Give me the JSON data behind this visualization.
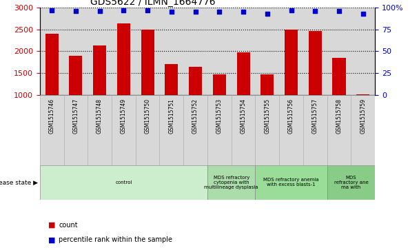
{
  "title": "GDS5622 / ILMN_1664776",
  "samples": [
    "GSM1515746",
    "GSM1515747",
    "GSM1515748",
    "GSM1515749",
    "GSM1515750",
    "GSM1515751",
    "GSM1515752",
    "GSM1515753",
    "GSM1515754",
    "GSM1515755",
    "GSM1515756",
    "GSM1515757",
    "GSM1515758",
    "GSM1515759"
  ],
  "counts": [
    2400,
    1900,
    2130,
    2630,
    2490,
    1700,
    1650,
    1470,
    1980,
    1465,
    2490,
    2460,
    1850,
    1020
  ],
  "percentile_ranks": [
    97,
    96,
    96,
    97,
    97,
    95,
    95,
    95,
    95,
    93,
    97,
    96,
    96,
    93
  ],
  "bar_color": "#cc0000",
  "dot_color": "#0000cc",
  "ylim_left": [
    1000,
    3000
  ],
  "ylim_right": [
    0,
    100
  ],
  "yticks_left": [
    1000,
    1500,
    2000,
    2500,
    3000
  ],
  "yticks_right": [
    0,
    25,
    50,
    75,
    100
  ],
  "ytick_labels_right": [
    "0",
    "25",
    "50",
    "75",
    "100%"
  ],
  "disease_groups": [
    {
      "label": "control",
      "start": 0,
      "end": 7,
      "color": "#cceecc"
    },
    {
      "label": "MDS refractory\ncytopenia with\nmultilineage dysplasia",
      "start": 7,
      "end": 9,
      "color": "#aaddaa"
    },
    {
      "label": "MDS refractory anemia\nwith excess blasts-1",
      "start": 9,
      "end": 12,
      "color": "#99dd99"
    },
    {
      "label": "MDS\nrefractory ane\nma with",
      "start": 12,
      "end": 14,
      "color": "#88cc88"
    }
  ],
  "disease_state_label": "disease state",
  "legend_items": [
    {
      "label": "count",
      "color": "#cc0000"
    },
    {
      "label": "percentile rank within the sample",
      "color": "#0000cc"
    }
  ],
  "bg_color": "#d8d8d8",
  "tick_label_box_color": "#cccccc"
}
